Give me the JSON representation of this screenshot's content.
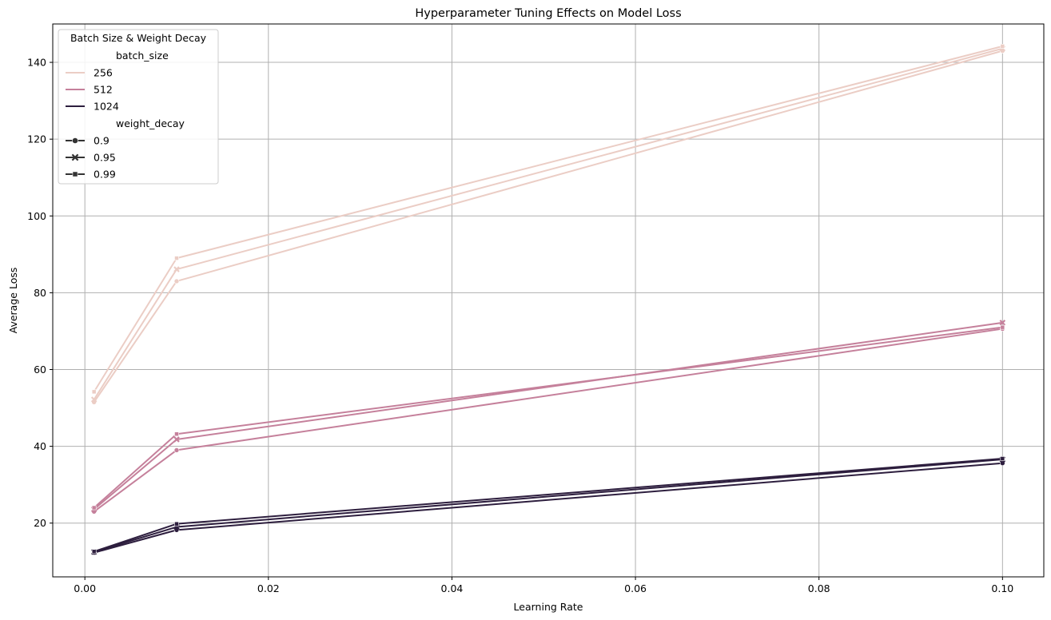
{
  "chart_data": {
    "type": "line",
    "title": "Hyperparameter Tuning Effects on Model Loss",
    "xlabel": "Learning Rate",
    "ylabel": "Average Loss",
    "xlim": [
      -0.0035,
      0.1045
    ],
    "ylim": [
      6,
      150
    ],
    "xticks": [
      0.0,
      0.02,
      0.04,
      0.06,
      0.08,
      0.1
    ],
    "xtick_labels": [
      "0.00",
      "0.02",
      "0.04",
      "0.06",
      "0.08",
      "0.10"
    ],
    "yticks": [
      20,
      40,
      60,
      80,
      100,
      120,
      140
    ],
    "ytick_labels": [
      "20",
      "40",
      "60",
      "80",
      "100",
      "120",
      "140"
    ],
    "grid": true,
    "legend": {
      "placement": "top-left",
      "title": "Batch Size & Weight Decay",
      "hue_title": "batch_size",
      "style_title": "weight_decay",
      "hue_entries": [
        {
          "label": "256",
          "color": "#ebcdc5"
        },
        {
          "label": "512",
          "color": "#c5809b"
        },
        {
          "label": "1024",
          "color": "#2d1e3e"
        }
      ],
      "style_entries": [
        {
          "label": "0.9",
          "marker": "circle"
        },
        {
          "label": "0.95",
          "marker": "x"
        },
        {
          "label": "0.99",
          "marker": "square"
        }
      ],
      "style_color": "#333333"
    },
    "x": [
      0.001,
      0.01,
      0.1
    ],
    "series": [
      {
        "name": "256 / 0.9",
        "batch_size": "256",
        "weight_decay": "0.9",
        "color": "#ebcdc5",
        "marker": "circle",
        "values": [
          51.5,
          83.0,
          143.0
        ]
      },
      {
        "name": "256 / 0.95",
        "batch_size": "256",
        "weight_decay": "0.95",
        "color": "#ebcdc5",
        "marker": "x",
        "values": [
          52.2,
          86.1,
          143.6
        ]
      },
      {
        "name": "256 / 0.99",
        "batch_size": "256",
        "weight_decay": "0.99",
        "color": "#ebcdc5",
        "marker": "square",
        "values": [
          54.2,
          89.0,
          144.2
        ]
      },
      {
        "name": "512 / 0.9",
        "batch_size": "512",
        "weight_decay": "0.9",
        "color": "#c5809b",
        "marker": "circle",
        "values": [
          23.0,
          39.0,
          70.6
        ]
      },
      {
        "name": "512 / 0.95",
        "batch_size": "512",
        "weight_decay": "0.95",
        "color": "#c5809b",
        "marker": "x",
        "values": [
          23.6,
          41.8,
          72.2
        ]
      },
      {
        "name": "512 / 0.99",
        "batch_size": "512",
        "weight_decay": "0.99",
        "color": "#c5809b",
        "marker": "square",
        "values": [
          24.0,
          43.2,
          71.0
        ]
      },
      {
        "name": "1024 / 0.9",
        "batch_size": "1024",
        "weight_decay": "0.9",
        "color": "#2d1e3e",
        "marker": "circle",
        "values": [
          12.3,
          18.2,
          35.6
        ]
      },
      {
        "name": "1024 / 0.95",
        "batch_size": "1024",
        "weight_decay": "0.95",
        "color": "#2d1e3e",
        "marker": "x",
        "values": [
          12.5,
          19.0,
          36.6
        ]
      },
      {
        "name": "1024 / 0.99",
        "batch_size": "1024",
        "weight_decay": "0.99",
        "color": "#2d1e3e",
        "marker": "square",
        "values": [
          12.6,
          19.8,
          36.8
        ]
      }
    ]
  }
}
